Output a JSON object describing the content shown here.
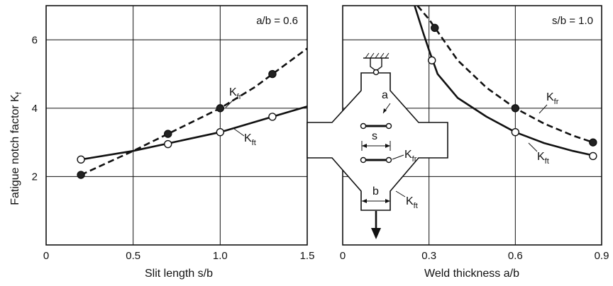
{
  "ylabel": "Fatigue notch factor K",
  "ylabel_sub": "f",
  "chart_data": [
    {
      "type": "line",
      "xlabel": "Slit length s/b",
      "ylabel": "Fatigue notch factor Kf",
      "xlim": [
        0,
        1.5
      ],
      "ylim": [
        0,
        7
      ],
      "xticks": [
        "0",
        "0.5",
        "1.0",
        "1.5"
      ],
      "xtick_values": [
        0,
        0.5,
        1.0,
        1.5
      ],
      "yticks": [
        "2",
        "4",
        "6"
      ],
      "ytick_values": [
        2,
        4,
        6
      ],
      "grid": true,
      "annotation": "a/b = 0.6",
      "series": [
        {
          "name": "Kfr",
          "name_main": "K",
          "name_sub": "fr",
          "style": "dashed",
          "marker": "filled",
          "x": [
            0.2,
            0.7,
            1.0,
            1.3
          ],
          "y": [
            2.05,
            3.25,
            4.0,
            5.0
          ],
          "curve_x": [
            0.2,
            0.5,
            0.8,
            1.0,
            1.2,
            1.5
          ],
          "curve_y": [
            2.05,
            2.75,
            3.5,
            4.0,
            4.62,
            5.75
          ]
        },
        {
          "name": "Kft",
          "name_main": "K",
          "name_sub": "ft",
          "style": "solid",
          "marker": "open",
          "x": [
            0.2,
            0.7,
            1.0,
            1.3
          ],
          "y": [
            2.5,
            2.95,
            3.3,
            3.75
          ],
          "curve_x": [
            0.2,
            0.5,
            1.0,
            1.5
          ],
          "curve_y": [
            2.5,
            2.75,
            3.3,
            4.05
          ]
        }
      ]
    },
    {
      "type": "line",
      "xlabel": "Weld thickness a/b",
      "ylabel": "",
      "xlim": [
        0,
        0.9
      ],
      "ylim": [
        0,
        7
      ],
      "xticks": [
        "0",
        "0.3",
        "0.6",
        "0.9"
      ],
      "xtick_values": [
        0,
        0.3,
        0.6,
        0.9
      ],
      "yticks": [],
      "ytick_values": [
        2,
        4,
        6
      ],
      "grid": true,
      "annotation": "s/b = 1.0",
      "series": [
        {
          "name": "Kfr",
          "name_main": "K",
          "name_sub": "fr",
          "style": "dashed",
          "marker": "filled",
          "x": [
            0.32,
            0.6,
            0.87
          ],
          "y": [
            6.35,
            4.0,
            3.0
          ],
          "curve_x": [
            0.26,
            0.3,
            0.35,
            0.4,
            0.5,
            0.6,
            0.7,
            0.8,
            0.87
          ],
          "curve_y": [
            7.0,
            6.6,
            6.0,
            5.4,
            4.6,
            4.0,
            3.55,
            3.2,
            3.0
          ]
        },
        {
          "name": "Kft",
          "name_main": "K",
          "name_sub": "ft",
          "style": "solid",
          "marker": "open",
          "x": [
            0.31,
            0.6,
            0.87
          ],
          "y": [
            5.4,
            3.3,
            2.6
          ],
          "curve_x": [
            0.25,
            0.28,
            0.3,
            0.33,
            0.4,
            0.5,
            0.6,
            0.7,
            0.8,
            0.87
          ],
          "curve_y": [
            7.0,
            6.2,
            5.7,
            5.0,
            4.3,
            3.75,
            3.3,
            2.98,
            2.75,
            2.62
          ]
        }
      ]
    }
  ],
  "diagram": {
    "label_a": "a",
    "label_s": "s",
    "label_b": "b",
    "label_kfr_main": "K",
    "label_kfr_sub": "fr",
    "label_kft_main": "K",
    "label_kft_sub": "ft"
  }
}
